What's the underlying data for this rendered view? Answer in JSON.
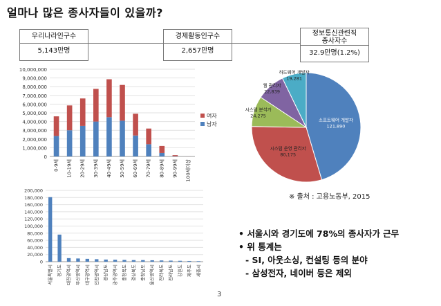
{
  "title": "얼마나 많은 종사자들이 있을까?",
  "boxes": [
    {
      "label": "우리나라인구수",
      "value": "5,143만명"
    },
    {
      "label": "경제활동인구수",
      "value": "2,657만명"
    },
    {
      "label_line1": "정보통신관련직",
      "label_line2": "종사자수",
      "value": "32.9만명(1.2%)"
    }
  ],
  "chart_data": [
    {
      "type": "bar",
      "stacked": true,
      "categories": [
        "0-9세",
        "10-19세",
        "20-29세",
        "30-39세",
        "40-49세",
        "50-59세",
        "60-69세",
        "70-79세",
        "80-89세",
        "90-99세",
        "100세이상"
      ],
      "series": [
        {
          "name": "남자",
          "color": "#4f81bd",
          "values": [
            2350000,
            3000000,
            3500000,
            4000000,
            4500000,
            4100000,
            2400000,
            1400000,
            400000,
            30000,
            2000
          ]
        },
        {
          "name": "여자",
          "color": "#c0504d",
          "values": [
            2250000,
            2850000,
            3150000,
            3750000,
            4350000,
            4100000,
            2500000,
            1800000,
            800000,
            120000,
            5000
          ]
        }
      ],
      "yticks": [
        "0",
        "1,000,000",
        "2,000,000",
        "3,000,000",
        "4,000,000",
        "5,000,000",
        "6,000,000",
        "7,000,000",
        "8,000,000",
        "9,000,000",
        "10,000,000"
      ],
      "ylim": [
        0,
        10000000
      ],
      "legend": [
        "여자",
        "남자"
      ]
    },
    {
      "type": "bar",
      "categories": [
        "서울특별시",
        "경기도",
        "대전광역시",
        "부산광역시",
        "대구광역시",
        "인천광역시",
        "경상남도",
        "광주광역시",
        "충청북도",
        "경상북도",
        "충청남도",
        "울산광역시",
        "전라북도",
        "전라남도",
        "강원도",
        "제주도",
        "세종시"
      ],
      "values": [
        181000,
        76000,
        10000,
        9000,
        8000,
        7000,
        6000,
        5500,
        5000,
        4500,
        4500,
        4000,
        3500,
        3000,
        2500,
        2000,
        1500
      ],
      "color": "#4f81bd",
      "yticks": [
        "0",
        "20,000",
        "40,000",
        "60,000",
        "80,000",
        "100,000",
        "120,000",
        "140,000",
        "160,000",
        "180,000",
        "200,000"
      ],
      "ylim": [
        0,
        200000
      ]
    },
    {
      "type": "pie",
      "slices": [
        {
          "label": "소프트웨어 개발자",
          "value": 121890,
          "value_text": "121,890",
          "color": "#4f81bd"
        },
        {
          "label": "시스템 운영 관리자",
          "value": 80175,
          "value_text": "80,175",
          "color": "#c0504d"
        },
        {
          "label": "시스템 분석가",
          "value": 24275,
          "value_text": "24,275",
          "color": "#9bbb59"
        },
        {
          "label": "웹 관리자",
          "value": 22839,
          "value_text": "22,839",
          "color": "#8064a2"
        },
        {
          "label": "하드웨어 개발자",
          "value": 19281,
          "value_text": "19,281",
          "color": "#4bacc6"
        }
      ]
    }
  ],
  "source": "※ 출처 : 고용노동부, 2015",
  "bullets": [
    "• 서울시와 경기도에 78%의 종사자가 근무",
    "• 위 통계는",
    "- SI, 아웃소싱, 컨설팅 등의 분야",
    "- 삼성전자, 네이버 등은 제외"
  ],
  "page_number": "3"
}
